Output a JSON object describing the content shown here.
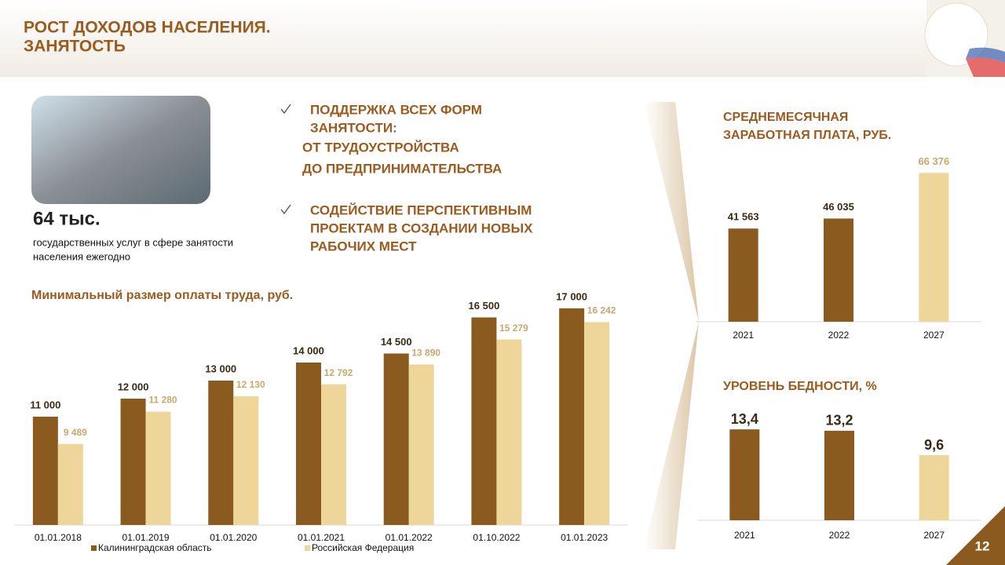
{
  "header": {
    "title_lines": [
      "РОСТ ДОХОДОВ  НАСЕЛЕНИЯ.",
      "ЗАНЯТОСТЬ"
    ]
  },
  "page_number": "12",
  "stat": {
    "value": "64 тыс.",
    "caption_lines": [
      "государственных услуг в сфере занятости",
      "населения ежегодно"
    ]
  },
  "bullets": [
    {
      "lines": [
        "ПОДДЕРЖКА ВСЕХ ФОРМ",
        "ЗАНЯТОСТИ:"
      ],
      "sub_lines": [
        "ОТ ТРУДОУСТРОЙСТВА",
        "ДО ПРЕДПРИНИМАТЕЛЬСТВА"
      ]
    },
    {
      "lines": [
        "СОДЕЙСТВИЕ ПЕРСПЕКТИВНЫМ",
        "ПРОЕКТАМ В СОЗДАНИИ НОВЫХ",
        "РАБОЧИХ МЕСТ"
      ],
      "sub_lines": []
    }
  ],
  "chart_data": [
    {
      "type": "bar",
      "title_lines": [
        "Минимальный размер оплаты труда, руб."
      ],
      "categories": [
        "01.01.2018",
        "01.01.2019",
        "01.01.2020",
        "01.01.2021",
        "01.01.2022",
        "01.10.2022",
        "01.01.2023"
      ],
      "series": [
        {
          "name": "Калининградская  область",
          "color": "#8b5a1e",
          "values": [
            11000,
            12000,
            13000,
            14000,
            14500,
            16500,
            17000
          ],
          "value_labels": [
            "11 000",
            "12 000",
            "13 000",
            "14 000",
            "14 500",
            "16 500",
            "17 000"
          ]
        },
        {
          "name": "Российская Федерация",
          "color": "#eed59a",
          "values": [
            9489,
            11280,
            12130,
            12792,
            13890,
            15279,
            16242
          ],
          "value_labels": [
            "9 489",
            "11 280",
            "12 130",
            "12 792",
            "13 890",
            "15 279",
            "16 242"
          ]
        }
      ],
      "ylim": [
        5000,
        18000
      ],
      "legend": "bottom"
    },
    {
      "type": "bar",
      "title_lines": [
        "СРЕДНЕМЕСЯЧНАЯ",
        "ЗАРАБОТНАЯ ПЛАТА, РУБ."
      ],
      "categories": [
        "2021",
        "2022",
        "2027"
      ],
      "values": [
        41563,
        46035,
        66376
      ],
      "value_labels": [
        "41 563",
        "46 035",
        "66 376"
      ],
      "colors": [
        "#8b5a1e",
        "#8b5a1e",
        "#eed59a"
      ],
      "ylim": [
        0,
        70000
      ]
    },
    {
      "type": "bar",
      "title_lines": [
        "УРОВЕНЬ БЕДНОСТИ, %"
      ],
      "categories": [
        "2021",
        "2022",
        "2027"
      ],
      "values": [
        13.4,
        13.2,
        9.6
      ],
      "value_labels": [
        "13,4",
        "13,2",
        "9,6"
      ],
      "colors": [
        "#8b5a1e",
        "#8b5a1e",
        "#eed59a"
      ],
      "ylim": [
        0,
        14
      ]
    }
  ]
}
